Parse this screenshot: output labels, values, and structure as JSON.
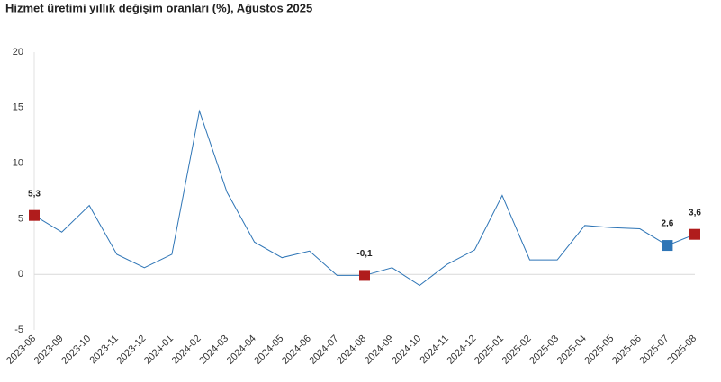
{
  "chart_data": {
    "type": "line",
    "title": "Hizmet üretimi yıllık değişim oranları (%), Ağustos 2025",
    "categories": [
      "2023-08",
      "2023-09",
      "2023-10",
      "2023-11",
      "2023-12",
      "2024-01",
      "2024-02",
      "2024-03",
      "2024-04",
      "2024-05",
      "2024-06",
      "2024-07",
      "2024-08",
      "2024-09",
      "2024-10",
      "2024-11",
      "2024-12",
      "2025-01",
      "2025-02",
      "2025-03",
      "2025-04",
      "2025-05",
      "2025-06",
      "2025-07",
      "2025-08"
    ],
    "series": [
      {
        "color": "#2e75b6",
        "values": [
          5.3,
          3.8,
          6.2,
          1.8,
          0.6,
          1.8,
          14.7,
          7.4,
          2.9,
          1.5,
          2.1,
          -0.1,
          -0.1,
          0.6,
          -1.0,
          0.9,
          2.2,
          7.1,
          1.3,
          1.3,
          4.4,
          4.2,
          4.1,
          2.6,
          3.6
        ],
        "value_labels": [
          "5,3",
          null,
          null,
          null,
          null,
          null,
          null,
          null,
          null,
          null,
          null,
          null,
          "-0,1",
          null,
          null,
          null,
          null,
          null,
          null,
          null,
          null,
          null,
          null,
          "2,6",
          "3,6"
        ],
        "marker_colors": [
          "#b01c1c",
          null,
          null,
          null,
          null,
          null,
          null,
          null,
          null,
          null,
          null,
          null,
          "#b01c1c",
          null,
          null,
          null,
          null,
          null,
          null,
          null,
          null,
          null,
          null,
          "#2e75b6",
          "#b01c1c"
        ]
      }
    ],
    "ylim": [
      -5,
      20
    ],
    "yticks": [
      -5,
      0,
      5,
      10,
      15,
      20
    ]
  }
}
